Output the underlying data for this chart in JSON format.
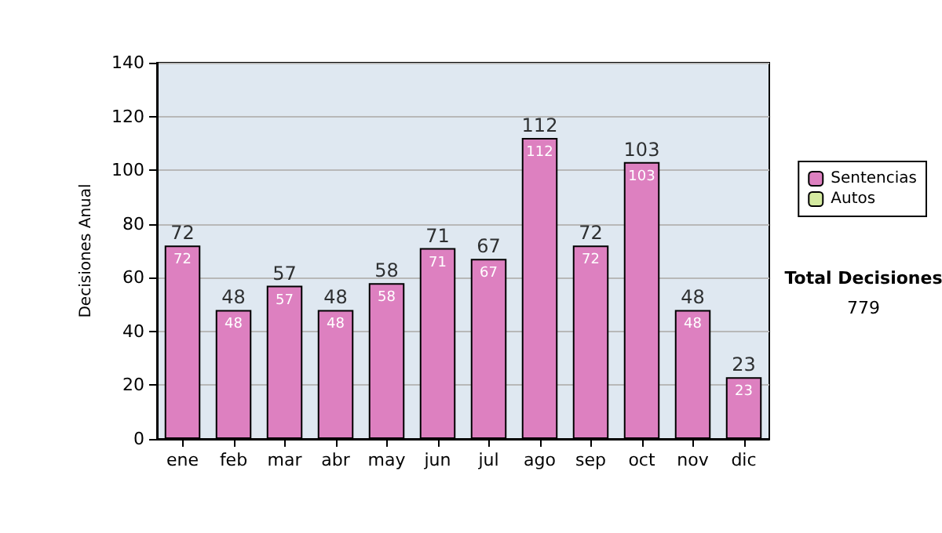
{
  "chart_data": {
    "type": "bar",
    "ylabel": "Decisiones Anual",
    "categories": [
      "ene",
      "feb",
      "mar",
      "abr",
      "may",
      "jun",
      "jul",
      "ago",
      "sep",
      "oct",
      "nov",
      "dic"
    ],
    "series": [
      {
        "name": "Sentencias",
        "color": "#dd80c0",
        "values": [
          72,
          48,
          57,
          48,
          58,
          71,
          67,
          112,
          72,
          103,
          48,
          23
        ],
        "value_labels": [
          "72",
          "48",
          "57",
          "48",
          "58",
          "71",
          "67",
          "112",
          "72",
          "103",
          "48",
          "23"
        ]
      },
      {
        "name": "Autos",
        "color": "#d4eaa0",
        "values": [
          0,
          0,
          0,
          0,
          0,
          0,
          0,
          0,
          0,
          0,
          0,
          0
        ],
        "value_labels": [
          null,
          null,
          null,
          null,
          null,
          null,
          null,
          null,
          null,
          null,
          null,
          null
        ]
      }
    ],
    "stacked": true,
    "totals": [
      "72",
      "48",
      "57",
      "48",
      "58",
      "71",
      "67",
      "112",
      "72",
      "103",
      "48",
      "23"
    ],
    "ylim": [
      0,
      140
    ],
    "yticks": [
      0,
      20,
      40,
      60,
      80,
      100,
      120,
      140
    ],
    "grid": "y",
    "legend": "right",
    "annotations": [
      "Total Decisiones",
      "779"
    ]
  }
}
